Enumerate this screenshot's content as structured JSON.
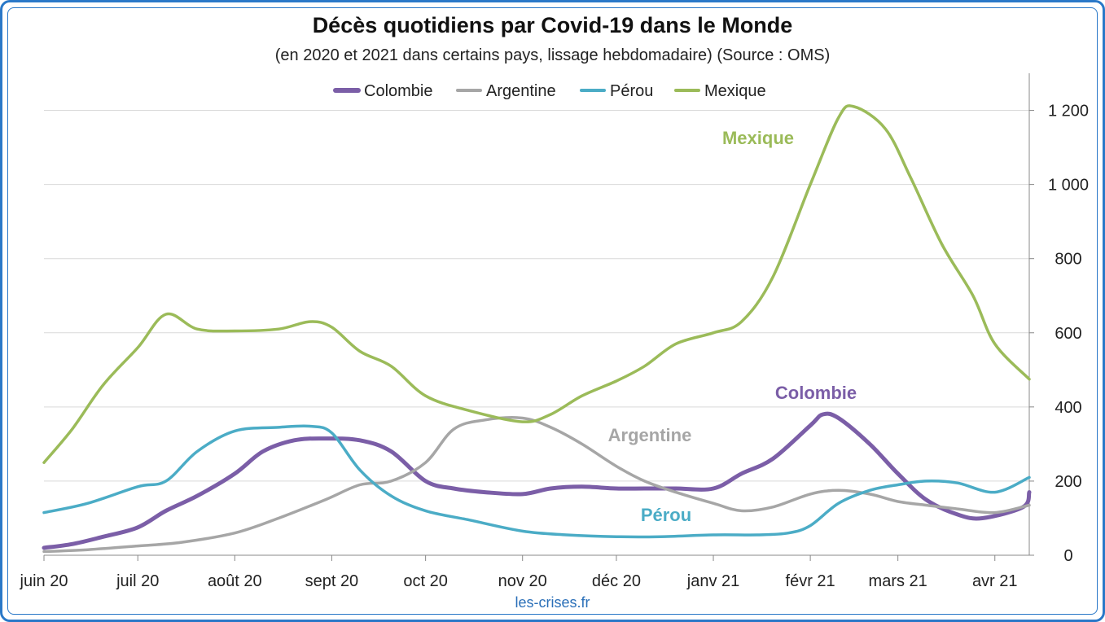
{
  "title": "Décès quotidiens par Covid-19 dans le Monde",
  "subtitle": "(en 2020 et 2021 dans certains pays, lissage hebdomadaire) (Source : OMS)",
  "credit": "les-crises.fr",
  "colors": {
    "Colombie": "#7b5ea7",
    "Argentine": "#a6a6a6",
    "Pérou": "#4bacc6",
    "Mexique": "#9bbb59"
  },
  "chart_data": {
    "type": "line",
    "x_ticks": [
      "juin 20",
      "juil 20",
      "août 20",
      "sept 20",
      "oct 20",
      "nov 20",
      "déc 20",
      "janv 21",
      "févr 21",
      "mars 21",
      "avr 21"
    ],
    "ylim": [
      0,
      1300
    ],
    "y_ticks": [
      0,
      200,
      400,
      600,
      800,
      1000,
      1200
    ],
    "y_tick_labels": [
      "0",
      "200",
      "400",
      "600",
      "800",
      "1 000",
      "1 200"
    ],
    "y_axis_side": "right",
    "grid": true,
    "legend": "top-center",
    "series": [
      {
        "name": "Colombie",
        "label": "Colombie",
        "x": [
          "2020-06-01",
          "2020-06-10",
          "2020-06-20",
          "2020-07-01",
          "2020-07-10",
          "2020-07-20",
          "2020-08-01",
          "2020-08-10",
          "2020-08-20",
          "2020-08-30",
          "2020-09-10",
          "2020-09-20",
          "2020-10-01",
          "2020-10-10",
          "2020-10-20",
          "2020-11-01",
          "2020-11-10",
          "2020-11-20",
          "2020-12-01",
          "2020-12-10",
          "2020-12-20",
          "2021-01-01",
          "2021-01-10",
          "2021-01-20",
          "2021-02-01",
          "2021-02-05",
          "2021-02-10",
          "2021-02-20",
          "2021-03-01",
          "2021-03-10",
          "2021-03-20",
          "2021-03-28",
          "2021-04-10",
          "2021-04-12"
        ],
        "values": [
          20,
          30,
          50,
          75,
          120,
          160,
          220,
          280,
          310,
          315,
          310,
          280,
          200,
          180,
          170,
          165,
          180,
          185,
          180,
          180,
          180,
          180,
          220,
          260,
          350,
          380,
          370,
          300,
          220,
          150,
          110,
          100,
          130,
          170
        ]
      },
      {
        "name": "Argentine",
        "label": "Argentine",
        "x": [
          "2020-06-01",
          "2020-06-15",
          "2020-07-01",
          "2020-07-15",
          "2020-08-01",
          "2020-08-15",
          "2020-08-30",
          "2020-09-10",
          "2020-09-20",
          "2020-10-01",
          "2020-10-10",
          "2020-10-20",
          "2020-11-01",
          "2020-11-10",
          "2020-11-20",
          "2020-12-01",
          "2020-12-10",
          "2020-12-20",
          "2021-01-01",
          "2021-01-10",
          "2021-01-20",
          "2021-02-01",
          "2021-02-10",
          "2021-02-20",
          "2021-03-01",
          "2021-03-10",
          "2021-03-20",
          "2021-04-01",
          "2021-04-12"
        ],
        "values": [
          10,
          15,
          25,
          35,
          60,
          100,
          150,
          190,
          200,
          250,
          340,
          365,
          370,
          345,
          300,
          240,
          200,
          170,
          140,
          120,
          130,
          165,
          175,
          165,
          145,
          135,
          125,
          115,
          135
        ]
      },
      {
        "name": "Pérou",
        "label": "Pérou",
        "x": [
          "2020-06-01",
          "2020-06-15",
          "2020-07-01",
          "2020-07-10",
          "2020-07-20",
          "2020-08-01",
          "2020-08-15",
          "2020-08-25",
          "2020-09-01",
          "2020-09-10",
          "2020-09-20",
          "2020-10-01",
          "2020-10-15",
          "2020-11-01",
          "2020-11-15",
          "2020-12-01",
          "2020-12-15",
          "2021-01-01",
          "2021-01-15",
          "2021-01-25",
          "2021-02-01",
          "2021-02-10",
          "2021-02-20",
          "2021-03-01",
          "2021-03-10",
          "2021-03-20",
          "2021-04-01",
          "2021-04-12"
        ],
        "values": [
          115,
          140,
          185,
          200,
          280,
          335,
          345,
          348,
          330,
          230,
          160,
          120,
          95,
          65,
          55,
          50,
          50,
          55,
          55,
          60,
          80,
          140,
          175,
          190,
          200,
          195,
          170,
          210
        ]
      },
      {
        "name": "Mexique",
        "label": "Mexique",
        "x": [
          "2020-06-01",
          "2020-06-10",
          "2020-06-20",
          "2020-07-01",
          "2020-07-10",
          "2020-07-20",
          "2020-08-01",
          "2020-08-15",
          "2020-08-25",
          "2020-09-01",
          "2020-09-10",
          "2020-09-20",
          "2020-10-01",
          "2020-10-15",
          "2020-11-01",
          "2020-11-10",
          "2020-11-20",
          "2020-12-01",
          "2020-12-10",
          "2020-12-20",
          "2021-01-01",
          "2021-01-10",
          "2021-01-20",
          "2021-02-01",
          "2021-02-10",
          "2021-02-15",
          "2021-02-25",
          "2021-03-05",
          "2021-03-15",
          "2021-03-25",
          "2021-04-01",
          "2021-04-12"
        ],
        "values": [
          250,
          340,
          460,
          560,
          650,
          610,
          605,
          610,
          630,
          615,
          550,
          510,
          430,
          390,
          360,
          380,
          430,
          470,
          510,
          570,
          600,
          630,
          750,
          1000,
          1180,
          1210,
          1150,
          1020,
          840,
          700,
          570,
          475
        ]
      }
    ]
  }
}
